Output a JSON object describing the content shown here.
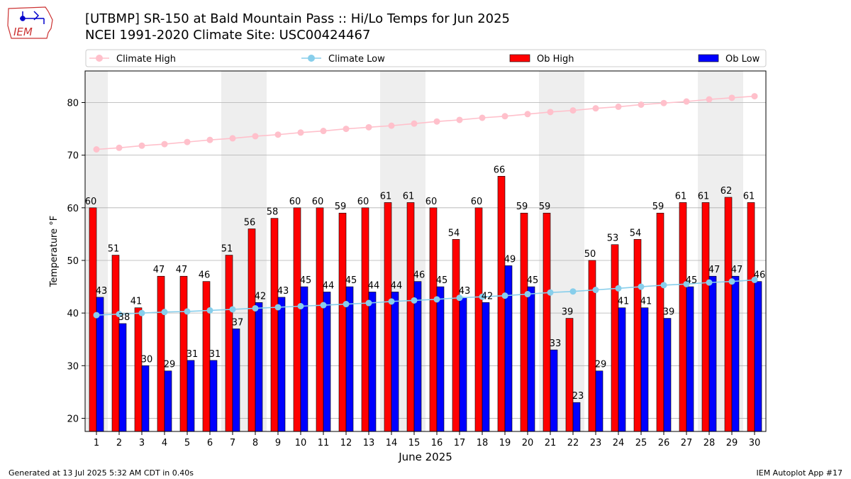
{
  "header": {
    "logo_text": "IEM",
    "title_line1": "[UTBMP] SR-150 at Bald Mountain Pass  :: Hi/Lo Temps for Jun 2025",
    "title_line2": "NCEI 1991-2020 Climate Site: USC00424467"
  },
  "footer": {
    "generated": "Generated at 13 Jul 2025 5:32 AM CDT in 0.40s",
    "app": "IEM Autoplot App #17"
  },
  "colors": {
    "ob_high": "#ff0000",
    "ob_low": "#0000ff",
    "climate_high": "#ffc0cb",
    "climate_low": "#87ceeb",
    "weekend_band": "#eeeeee",
    "grid": "#b0b0b0"
  },
  "chart_data": {
    "type": "bar",
    "xlabel": "June 2025",
    "ylabel": "Temperature °F",
    "ylim": [
      17.5,
      86
    ],
    "yticks": [
      20,
      30,
      40,
      50,
      60,
      70,
      80
    ],
    "grid": "horizontal",
    "legend_placement": "top",
    "legend": [
      "Climate High",
      "Climate Low",
      "Ob High",
      "Ob Low"
    ],
    "x": [
      1,
      2,
      3,
      4,
      5,
      6,
      7,
      8,
      9,
      10,
      11,
      12,
      13,
      14,
      15,
      16,
      17,
      18,
      19,
      20,
      21,
      22,
      23,
      24,
      25,
      26,
      27,
      28,
      29,
      30
    ],
    "weekend_days": [
      1,
      7,
      8,
      14,
      15,
      21,
      22,
      28,
      29
    ],
    "series": [
      {
        "name": "Ob High",
        "kind": "bar",
        "values": [
          60,
          51,
          41,
          47,
          47,
          46,
          51,
          56,
          58,
          60,
          60,
          59,
          60,
          61,
          61,
          60,
          54,
          60,
          66,
          59,
          59,
          39,
          50,
          53,
          54,
          59,
          61,
          61,
          62,
          61
        ]
      },
      {
        "name": "Ob Low",
        "kind": "bar",
        "values": [
          43,
          38,
          30,
          29,
          31,
          31,
          37,
          42,
          43,
          45,
          44,
          45,
          44,
          44,
          46,
          45,
          43,
          42,
          49,
          45,
          33,
          23,
          29,
          41,
          41,
          39,
          45,
          47,
          47,
          46
        ]
      },
      {
        "name": "Climate High",
        "kind": "line",
        "values": [
          71.1,
          71.4,
          71.8,
          72.1,
          72.5,
          72.9,
          73.2,
          73.6,
          73.9,
          74.3,
          74.6,
          75.0,
          75.3,
          75.6,
          76.0,
          76.4,
          76.7,
          77.1,
          77.4,
          77.8,
          78.2,
          78.5,
          78.9,
          79.2,
          79.6,
          79.9,
          80.2,
          80.6,
          80.9,
          81.2
        ]
      },
      {
        "name": "Climate Low",
        "kind": "line",
        "values": [
          39.6,
          39.8,
          40.0,
          40.2,
          40.3,
          40.5,
          40.7,
          40.9,
          41.1,
          41.3,
          41.5,
          41.7,
          41.9,
          42.2,
          42.4,
          42.6,
          42.9,
          43.1,
          43.3,
          43.6,
          43.9,
          44.1,
          44.4,
          44.7,
          45.0,
          45.3,
          45.5,
          45.8,
          46.0,
          46.3
        ]
      }
    ]
  }
}
